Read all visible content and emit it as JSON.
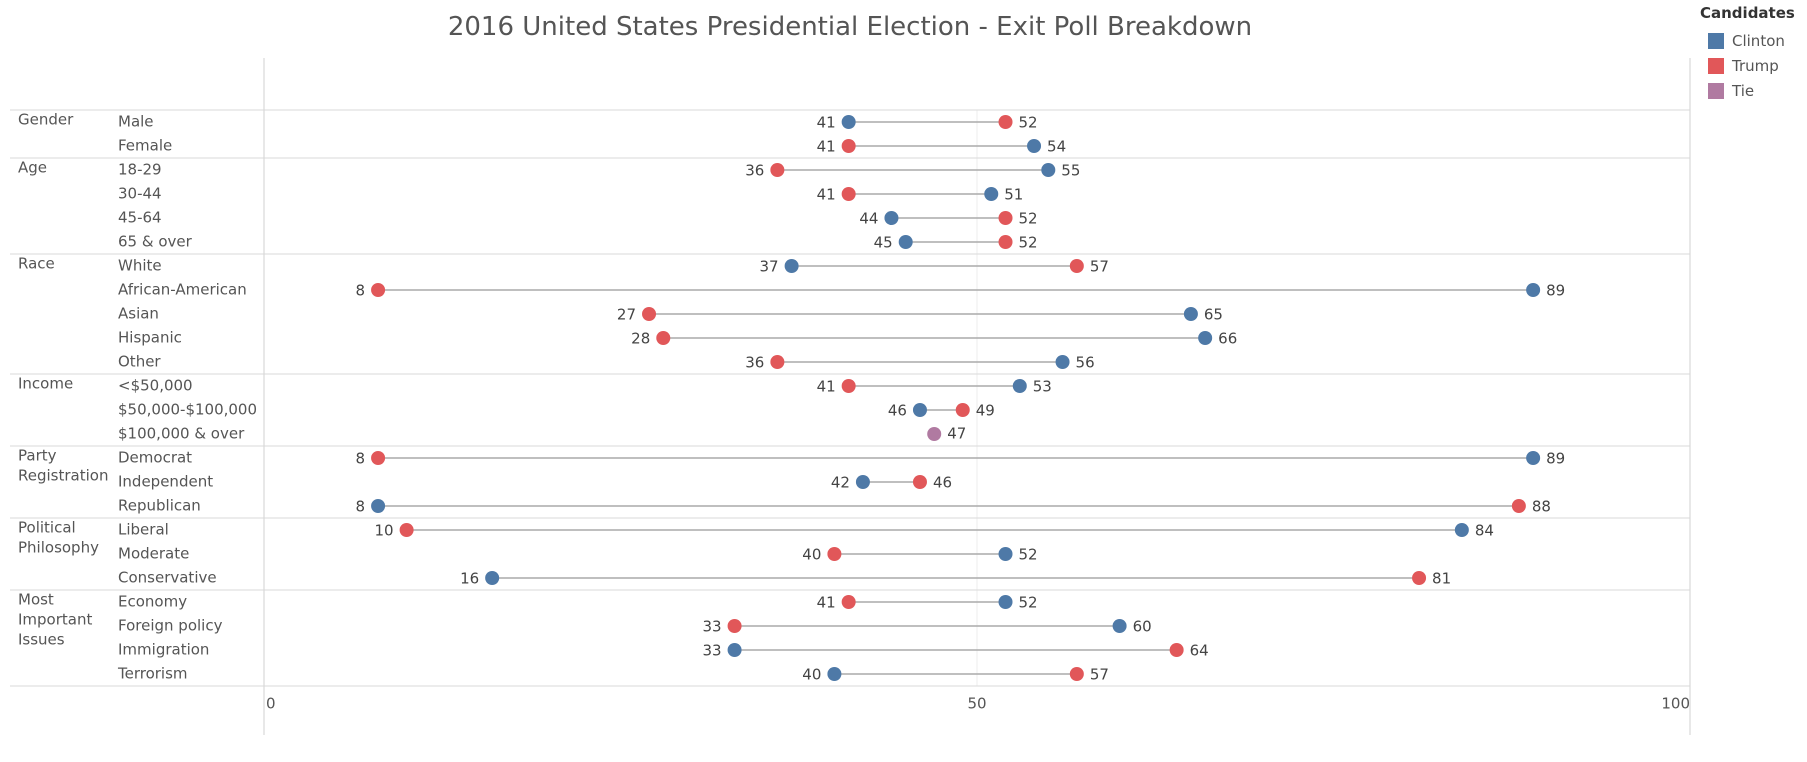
{
  "chart_data": {
    "type": "dumbbell",
    "title": "2016 United States Presidential Election - Exit Poll Breakdown",
    "xlabel": "",
    "ylabel": "",
    "xlim": [
      0,
      100
    ],
    "x_ticks": [
      "0",
      "50",
      "100"
    ],
    "grid": false,
    "legend_placement": "top-right",
    "legend": {
      "title": "Candidates",
      "items": [
        {
          "name": "Clinton",
          "color": "#4e79a7"
        },
        {
          "name": "Trump",
          "color": "#e15759"
        },
        {
          "name": "Tie",
          "color": "#b07aa1"
        }
      ]
    },
    "groups": [
      {
        "name": "Gender",
        "rows": [
          {
            "label": "Male",
            "clinton": 41,
            "trump": 52
          },
          {
            "label": "Female",
            "clinton": 54,
            "trump": 41
          }
        ]
      },
      {
        "name": "Age",
        "rows": [
          {
            "label": "18-29",
            "clinton": 55,
            "trump": 36
          },
          {
            "label": "30-44",
            "clinton": 51,
            "trump": 41
          },
          {
            "label": "45-64",
            "clinton": 44,
            "trump": 52
          },
          {
            "label": "65 & over",
            "clinton": 45,
            "trump": 52
          }
        ]
      },
      {
        "name": "Race",
        "rows": [
          {
            "label": "White",
            "clinton": 37,
            "trump": 57
          },
          {
            "label": "African-American",
            "clinton": 89,
            "trump": 8
          },
          {
            "label": "Asian",
            "clinton": 65,
            "trump": 27
          },
          {
            "label": "Hispanic",
            "clinton": 66,
            "trump": 28
          },
          {
            "label": "Other",
            "clinton": 56,
            "trump": 36
          }
        ]
      },
      {
        "name": "Income",
        "rows": [
          {
            "label": "<$50,000",
            "clinton": 53,
            "trump": 41
          },
          {
            "label": "$50,000-$100,000",
            "clinton": 46,
            "trump": 49
          },
          {
            "label": "$100,000 & over",
            "clinton": 47,
            "trump": 47
          }
        ]
      },
      {
        "name": "Party Registration",
        "rows": [
          {
            "label": "Democrat",
            "clinton": 89,
            "trump": 8
          },
          {
            "label": "Independent",
            "clinton": 42,
            "trump": 46
          },
          {
            "label": "Republican",
            "clinton": 8,
            "trump": 88
          }
        ]
      },
      {
        "name": "Political Philosophy",
        "rows": [
          {
            "label": "Liberal",
            "clinton": 84,
            "trump": 10
          },
          {
            "label": "Moderate",
            "clinton": 52,
            "trump": 40
          },
          {
            "label": "Conservative",
            "clinton": 16,
            "trump": 81
          }
        ]
      },
      {
        "name": "Most Important Issues",
        "rows": [
          {
            "label": "Economy",
            "clinton": 52,
            "trump": 41
          },
          {
            "label": "Foreign policy",
            "clinton": 60,
            "trump": 33
          },
          {
            "label": "Immigration",
            "clinton": 33,
            "trump": 64
          },
          {
            "label": "Terrorism",
            "clinton": 40,
            "trump": 57
          }
        ]
      }
    ]
  }
}
